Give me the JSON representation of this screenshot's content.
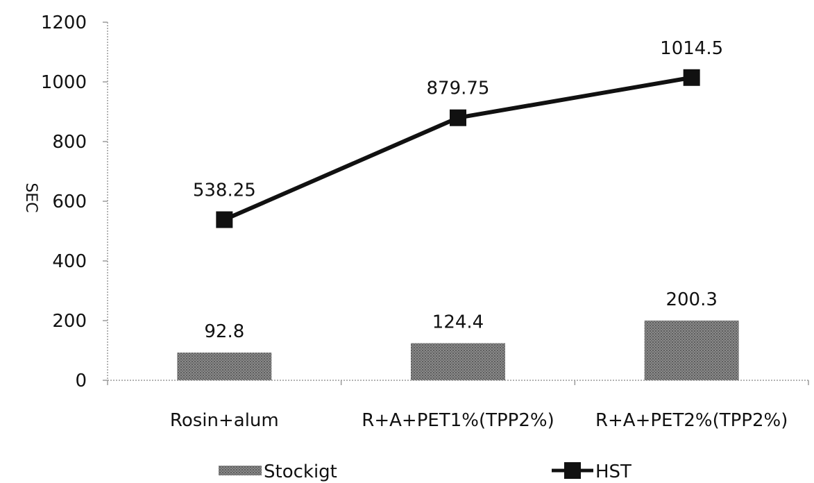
{
  "chart_data": {
    "type": "bar",
    "categories": [
      "Rosin+alum",
      "R+A+PET1%(TPP2%)",
      "R+A+PET2%(TPP2%)"
    ],
    "series": [
      {
        "name": "Stockigt",
        "kind": "bar",
        "values": [
          92.8,
          124.4,
          200.3
        ],
        "labels": [
          "92.8",
          "124.4",
          "200.3"
        ],
        "color": "#7a7a7a"
      },
      {
        "name": "HST",
        "kind": "line",
        "marker": "square",
        "values": [
          538.25,
          879.75,
          1014.5
        ],
        "labels": [
          "538.25",
          "879.75",
          "1014.5"
        ],
        "color": "#111111"
      }
    ],
    "title": "",
    "xlabel": "",
    "ylabel": "SEC",
    "ylim": [
      0,
      1200
    ],
    "yticks": [
      "0",
      "200",
      "400",
      "600",
      "800",
      "1000",
      "1200"
    ],
    "grid": false,
    "legend_position": "bottom"
  }
}
